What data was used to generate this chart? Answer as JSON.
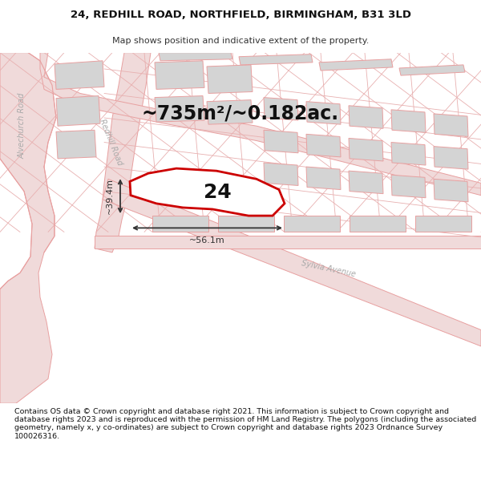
{
  "title_line1": "24, REDHILL ROAD, NORTHFIELD, BIRMINGHAM, B31 3LD",
  "title_line2": "Map shows position and indicative extent of the property.",
  "area_text": "~735m²/~0.182ac.",
  "label_number": "24",
  "dim_width": "~56.1m",
  "dim_height": "~39.4m",
  "road_label_1": "Redhill Road",
  "road_label_2": "Sylvia Avenue",
  "road_label_3": "Alvechurch Road",
  "footer": "Contains OS data © Crown copyright and database right 2021. This information is subject to Crown copyright and database rights 2023 and is reproduced with the permission of HM Land Registry. The polygons (including the associated geometry, namely x, y co-ordinates) are subject to Crown copyright and database rights 2023 Ordnance Survey 100026316.",
  "bg_color": "#ffffff",
  "map_bg": "#ffffff",
  "road_line_color": "#e8a0a0",
  "road_fill": "#f0dada",
  "highlight_fill": "#ffffff",
  "highlight_stroke": "#cc0000",
  "building_fill": "#d4d4d4",
  "building_stroke": "#e8a0a0",
  "dim_color": "#333333",
  "title_fontsize": 9.5,
  "subtitle_fontsize": 8.0,
  "area_fontsize": 17,
  "label_fontsize": 18,
  "footer_fontsize": 6.8
}
